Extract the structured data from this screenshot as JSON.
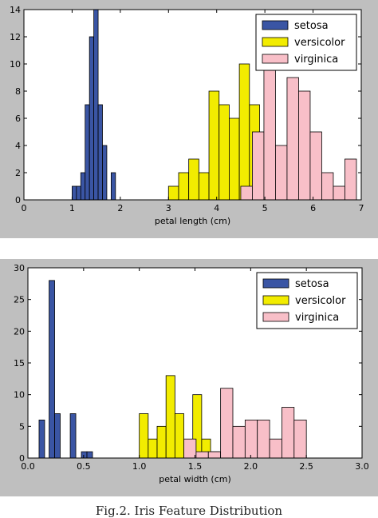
{
  "caption": "Fig.2. Iris Feature Distribution",
  "colors": {
    "setosa": "#3a55a4",
    "versicolor": "#f2ec00",
    "virginica": "#f8bfc8",
    "panel": "#bfbfbf"
  },
  "chart_data": [
    {
      "type": "bar",
      "xlabel": "petal length (cm)",
      "ylabel": "",
      "xlim": [
        0,
        7
      ],
      "ylim": [
        0,
        14
      ],
      "xticks": [
        0,
        1,
        2,
        3,
        4,
        5,
        6,
        7
      ],
      "yticks": [
        0,
        2,
        4,
        6,
        8,
        10,
        12,
        14
      ],
      "grid": false,
      "legend": "top-right",
      "series": [
        {
          "name": "setosa",
          "color": "#3a55a4",
          "bins": [
            {
              "x0": 1.0,
              "x1": 1.09,
              "count": 1
            },
            {
              "x0": 1.09,
              "x1": 1.18,
              "count": 1
            },
            {
              "x0": 1.18,
              "x1": 1.27,
              "count": 2
            },
            {
              "x0": 1.27,
              "x1": 1.36,
              "count": 7
            },
            {
              "x0": 1.36,
              "x1": 1.45,
              "count": 12
            },
            {
              "x0": 1.45,
              "x1": 1.54,
              "count": 14
            },
            {
              "x0": 1.54,
              "x1": 1.63,
              "count": 7
            },
            {
              "x0": 1.63,
              "x1": 1.72,
              "count": 4
            },
            {
              "x0": 1.81,
              "x1": 1.9,
              "count": 2
            }
          ]
        },
        {
          "name": "versicolor",
          "color": "#f2ec00",
          "bins": [
            {
              "x0": 3.0,
              "x1": 3.21,
              "count": 1
            },
            {
              "x0": 3.21,
              "x1": 3.42,
              "count": 2
            },
            {
              "x0": 3.42,
              "x1": 3.63,
              "count": 3
            },
            {
              "x0": 3.63,
              "x1": 3.84,
              "count": 2
            },
            {
              "x0": 3.84,
              "x1": 4.05,
              "count": 8
            },
            {
              "x0": 4.05,
              "x1": 4.26,
              "count": 7
            },
            {
              "x0": 4.26,
              "x1": 4.47,
              "count": 6
            },
            {
              "x0": 4.47,
              "x1": 4.68,
              "count": 10
            },
            {
              "x0": 4.68,
              "x1": 4.89,
              "count": 7
            },
            {
              "x0": 4.89,
              "x1": 5.1,
              "count": 4
            }
          ]
        },
        {
          "name": "virginica",
          "color": "#f8bfc8",
          "bins": [
            {
              "x0": 4.5,
              "x1": 4.74,
              "count": 1
            },
            {
              "x0": 4.74,
              "x1": 4.98,
              "count": 5
            },
            {
              "x0": 4.98,
              "x1": 5.22,
              "count": 10
            },
            {
              "x0": 5.22,
              "x1": 5.46,
              "count": 4
            },
            {
              "x0": 5.46,
              "x1": 5.7,
              "count": 9
            },
            {
              "x0": 5.7,
              "x1": 5.94,
              "count": 8
            },
            {
              "x0": 5.94,
              "x1": 6.18,
              "count": 5
            },
            {
              "x0": 6.18,
              "x1": 6.42,
              "count": 2
            },
            {
              "x0": 6.42,
              "x1": 6.66,
              "count": 1
            },
            {
              "x0": 6.66,
              "x1": 6.9,
              "count": 3
            }
          ]
        }
      ]
    },
    {
      "type": "bar",
      "xlabel": "petal width (cm)",
      "ylabel": "",
      "xlim": [
        0,
        3
      ],
      "ylim": [
        0,
        30
      ],
      "xticks": [
        "0.0",
        "0.5",
        "1.0",
        "1.5",
        "2.0",
        "2.5",
        "3.0"
      ],
      "yticks": [
        0,
        5,
        10,
        15,
        20,
        25,
        30
      ],
      "grid": false,
      "legend": "top-right",
      "series": [
        {
          "name": "setosa",
          "color": "#3a55a4",
          "bins": [
            {
              "x0": 0.1,
              "x1": 0.15,
              "count": 6
            },
            {
              "x0": 0.19,
              "x1": 0.24,
              "count": 28
            },
            {
              "x0": 0.24,
              "x1": 0.29,
              "count": 7
            },
            {
              "x0": 0.38,
              "x1": 0.43,
              "count": 7
            },
            {
              "x0": 0.48,
              "x1": 0.53,
              "count": 1
            },
            {
              "x0": 0.53,
              "x1": 0.58,
              "count": 1
            }
          ]
        },
        {
          "name": "versicolor",
          "color": "#f2ec00",
          "bins": [
            {
              "x0": 1.0,
              "x1": 1.08,
              "count": 7
            },
            {
              "x0": 1.08,
              "x1": 1.16,
              "count": 3
            },
            {
              "x0": 1.16,
              "x1": 1.24,
              "count": 5
            },
            {
              "x0": 1.24,
              "x1": 1.32,
              "count": 13
            },
            {
              "x0": 1.32,
              "x1": 1.4,
              "count": 7
            },
            {
              "x0": 1.48,
              "x1": 1.56,
              "count": 10
            },
            {
              "x0": 1.56,
              "x1": 1.64,
              "count": 3
            },
            {
              "x0": 1.64,
              "x1": 1.72,
              "count": 1
            }
          ]
        },
        {
          "name": "virginica",
          "color": "#f8bfc8",
          "bins": [
            {
              "x0": 1.4,
              "x1": 1.51,
              "count": 3
            },
            {
              "x0": 1.51,
              "x1": 1.62,
              "count": 1
            },
            {
              "x0": 1.62,
              "x1": 1.73,
              "count": 1
            },
            {
              "x0": 1.73,
              "x1": 1.84,
              "count": 11
            },
            {
              "x0": 1.84,
              "x1": 1.95,
              "count": 5
            },
            {
              "x0": 1.95,
              "x1": 2.06,
              "count": 6
            },
            {
              "x0": 2.06,
              "x1": 2.17,
              "count": 6
            },
            {
              "x0": 2.17,
              "x1": 2.28,
              "count": 3
            },
            {
              "x0": 2.28,
              "x1": 2.39,
              "count": 8
            },
            {
              "x0": 2.39,
              "x1": 2.5,
              "count": 6
            }
          ]
        }
      ]
    }
  ]
}
